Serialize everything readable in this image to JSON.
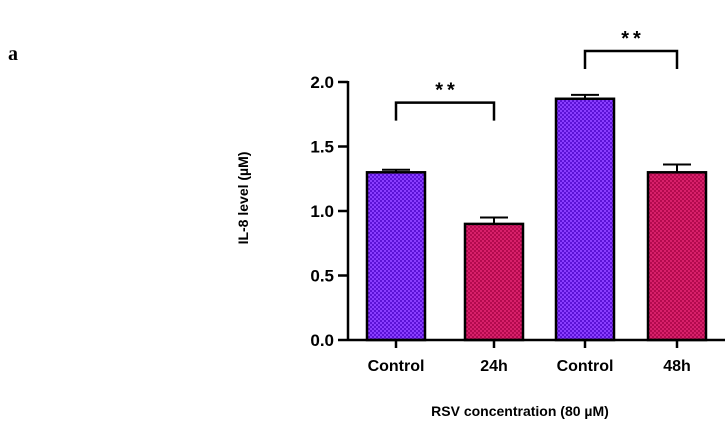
{
  "panel_label": "a",
  "chart_data": {
    "type": "bar",
    "categories": [
      "Control",
      "24h",
      "Control",
      "48h"
    ],
    "values": [
      1.3,
      0.9,
      1.87,
      1.3
    ],
    "errors": [
      0.02,
      0.05,
      0.03,
      0.06
    ],
    "bar_colors": [
      "#7a2cff",
      "#cc0f5a",
      "#7a2cff",
      "#cc0f5a"
    ],
    "ylim": [
      0,
      2.0
    ],
    "yticks": [
      "0.0",
      "0.5",
      "1.0",
      "1.5",
      "2.0"
    ],
    "ylabel": "IL-8 level (µM)",
    "xlabel": "RSV concentration (80 µM)",
    "significance": [
      {
        "from": 0,
        "to": 1,
        "label": "**",
        "level": 1.84
      },
      {
        "from": 2,
        "to": 3,
        "label": "**",
        "level": 2.24
      }
    ],
    "grid": false,
    "legend": "none"
  }
}
